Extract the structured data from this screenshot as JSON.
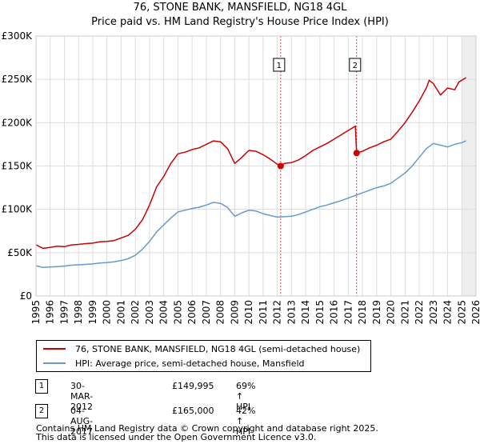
{
  "title_line1": "76, STONE BANK, MANSFIELD, NG18 4GL",
  "title_line2": "Price paid vs. HM Land Registry's House Price Index (HPI)",
  "chart_data": {
    "type": "line",
    "xlim": [
      1995,
      2026
    ],
    "ylim": [
      0,
      300000
    ],
    "y_ticks": [
      0,
      50000,
      100000,
      150000,
      200000,
      250000,
      300000
    ],
    "y_tick_labels": [
      "£0",
      "£50K",
      "£100K",
      "£150K",
      "£200K",
      "£250K",
      "£300K"
    ],
    "x_ticks": [
      1995,
      1996,
      1997,
      1998,
      1999,
      2000,
      2001,
      2002,
      2003,
      2004,
      2005,
      2006,
      2007,
      2008,
      2009,
      2010,
      2011,
      2012,
      2013,
      2014,
      2015,
      2016,
      2017,
      2018,
      2019,
      2020,
      2021,
      2022,
      2023,
      2024,
      2025,
      2026
    ],
    "grid": true,
    "series": [
      {
        "name": "76, STONE BANK, MANSFIELD, NG18 4GL (semi-detached house)",
        "color": "#cc0000",
        "points": [
          [
            1995.0,
            59000
          ],
          [
            1995.5,
            55000
          ],
          [
            1996.0,
            56000
          ],
          [
            1996.5,
            57500
          ],
          [
            1997.0,
            57000
          ],
          [
            1997.5,
            59000
          ],
          [
            1998.0,
            59500
          ],
          [
            1998.5,
            60500
          ],
          [
            1999.0,
            61000
          ],
          [
            1999.5,
            62500
          ],
          [
            2000.0,
            63000
          ],
          [
            2000.5,
            64000
          ],
          [
            2001.0,
            67000
          ],
          [
            2001.5,
            70000
          ],
          [
            2002.0,
            77000
          ],
          [
            2002.5,
            88000
          ],
          [
            2003.0,
            105000
          ],
          [
            2003.5,
            126000
          ],
          [
            2004.0,
            138000
          ],
          [
            2004.5,
            153000
          ],
          [
            2005.0,
            164000
          ],
          [
            2005.5,
            166000
          ],
          [
            2006.0,
            169000
          ],
          [
            2006.5,
            171000
          ],
          [
            2007.0,
            175000
          ],
          [
            2007.5,
            179000
          ],
          [
            2008.0,
            178000
          ],
          [
            2008.5,
            170000
          ],
          [
            2009.0,
            153000
          ],
          [
            2009.5,
            160000
          ],
          [
            2010.0,
            168000
          ],
          [
            2010.5,
            167000
          ],
          [
            2011.0,
            163000
          ],
          [
            2011.5,
            158000
          ],
          [
            2012.0,
            152000
          ],
          [
            2012.24,
            149995
          ],
          [
            2012.5,
            153000
          ],
          [
            2013.0,
            154000
          ],
          [
            2013.5,
            157000
          ],
          [
            2014.0,
            162000
          ],
          [
            2014.5,
            168000
          ],
          [
            2015.0,
            172000
          ],
          [
            2015.5,
            176000
          ],
          [
            2016.0,
            181000
          ],
          [
            2016.5,
            186000
          ],
          [
            2017.0,
            191000
          ],
          [
            2017.5,
            196000
          ],
          [
            2017.55,
            178000
          ],
          [
            2017.59,
            165000
          ],
          [
            2018.0,
            167000
          ],
          [
            2018.5,
            171000
          ],
          [
            2019.0,
            174000
          ],
          [
            2019.5,
            178000
          ],
          [
            2020.0,
            181000
          ],
          [
            2020.5,
            190000
          ],
          [
            2021.0,
            200000
          ],
          [
            2021.5,
            212000
          ],
          [
            2022.0,
            225000
          ],
          [
            2022.5,
            240000
          ],
          [
            2022.7,
            249000
          ],
          [
            2023.0,
            245000
          ],
          [
            2023.5,
            232000
          ],
          [
            2024.0,
            240000
          ],
          [
            2024.5,
            238000
          ],
          [
            2024.8,
            247000
          ],
          [
            2025.0,
            249000
          ],
          [
            2025.3,
            252000
          ]
        ]
      },
      {
        "name": "HPI: Average price, semi-detached house, Mansfield",
        "color": "#6699cc",
        "points": [
          [
            1995.0,
            35000
          ],
          [
            1995.5,
            33000
          ],
          [
            1996.0,
            33500
          ],
          [
            1996.5,
            34000
          ],
          [
            1997.0,
            34500
          ],
          [
            1997.5,
            35500
          ],
          [
            1998.0,
            36000
          ],
          [
            1998.5,
            36500
          ],
          [
            1999.0,
            37000
          ],
          [
            1999.5,
            38000
          ],
          [
            2000.0,
            38500
          ],
          [
            2000.5,
            39500
          ],
          [
            2001.0,
            41000
          ],
          [
            2001.5,
            43000
          ],
          [
            2002.0,
            47000
          ],
          [
            2002.5,
            54000
          ],
          [
            2003.0,
            63000
          ],
          [
            2003.5,
            74000
          ],
          [
            2004.0,
            82000
          ],
          [
            2004.5,
            90000
          ],
          [
            2005.0,
            97000
          ],
          [
            2005.5,
            99000
          ],
          [
            2006.0,
            101000
          ],
          [
            2006.5,
            102500
          ],
          [
            2007.0,
            105000
          ],
          [
            2007.5,
            108000
          ],
          [
            2008.0,
            107000
          ],
          [
            2008.5,
            102000
          ],
          [
            2009.0,
            92000
          ],
          [
            2009.5,
            96000
          ],
          [
            2010.0,
            99000
          ],
          [
            2010.5,
            98000
          ],
          [
            2011.0,
            95000
          ],
          [
            2011.5,
            93000
          ],
          [
            2012.0,
            91000
          ],
          [
            2012.5,
            91500
          ],
          [
            2013.0,
            92000
          ],
          [
            2013.5,
            94000
          ],
          [
            2014.0,
            97000
          ],
          [
            2014.5,
            100000
          ],
          [
            2015.0,
            103000
          ],
          [
            2015.5,
            105000
          ],
          [
            2016.0,
            107500
          ],
          [
            2016.5,
            110000
          ],
          [
            2017.0,
            113000
          ],
          [
            2017.5,
            116000
          ],
          [
            2018.0,
            119000
          ],
          [
            2018.5,
            122000
          ],
          [
            2019.0,
            125000
          ],
          [
            2019.5,
            127000
          ],
          [
            2020.0,
            130000
          ],
          [
            2020.5,
            136000
          ],
          [
            2021.0,
            142000
          ],
          [
            2021.5,
            150000
          ],
          [
            2022.0,
            160000
          ],
          [
            2022.5,
            170000
          ],
          [
            2023.0,
            176000
          ],
          [
            2023.5,
            174000
          ],
          [
            2024.0,
            172000
          ],
          [
            2024.5,
            175000
          ],
          [
            2025.0,
            177000
          ],
          [
            2025.3,
            179000
          ]
        ]
      }
    ],
    "sales": [
      {
        "label": "1",
        "x": 2012.24,
        "y": 149995
      },
      {
        "label": "2",
        "x": 2017.59,
        "y": 165000
      }
    ],
    "future_start": 2025.0
  },
  "legend": {
    "red_label": "76, STONE BANK, MANSFIELD, NG18 4GL (semi-detached house)",
    "blue_label": "HPI: Average price, semi-detached house, Mansfield"
  },
  "transactions": [
    {
      "num": "1",
      "date": "30-MAR-2012",
      "price": "£149,995",
      "hpi": "69% ↑ HPI"
    },
    {
      "num": "2",
      "date": "04-AUG-2017",
      "price": "£165,000",
      "hpi": "42% ↑ HPI"
    }
  ],
  "footer": {
    "line1": "Contains HM Land Registry data © Crown copyright and database right 2025.",
    "line2": "This data is licensed under the Open Government Licence v3.0."
  },
  "colors": {
    "red": "#cc0000",
    "blue": "#6699cc",
    "marker_line": "#dd4444",
    "sale_band": "#dde6f4"
  }
}
